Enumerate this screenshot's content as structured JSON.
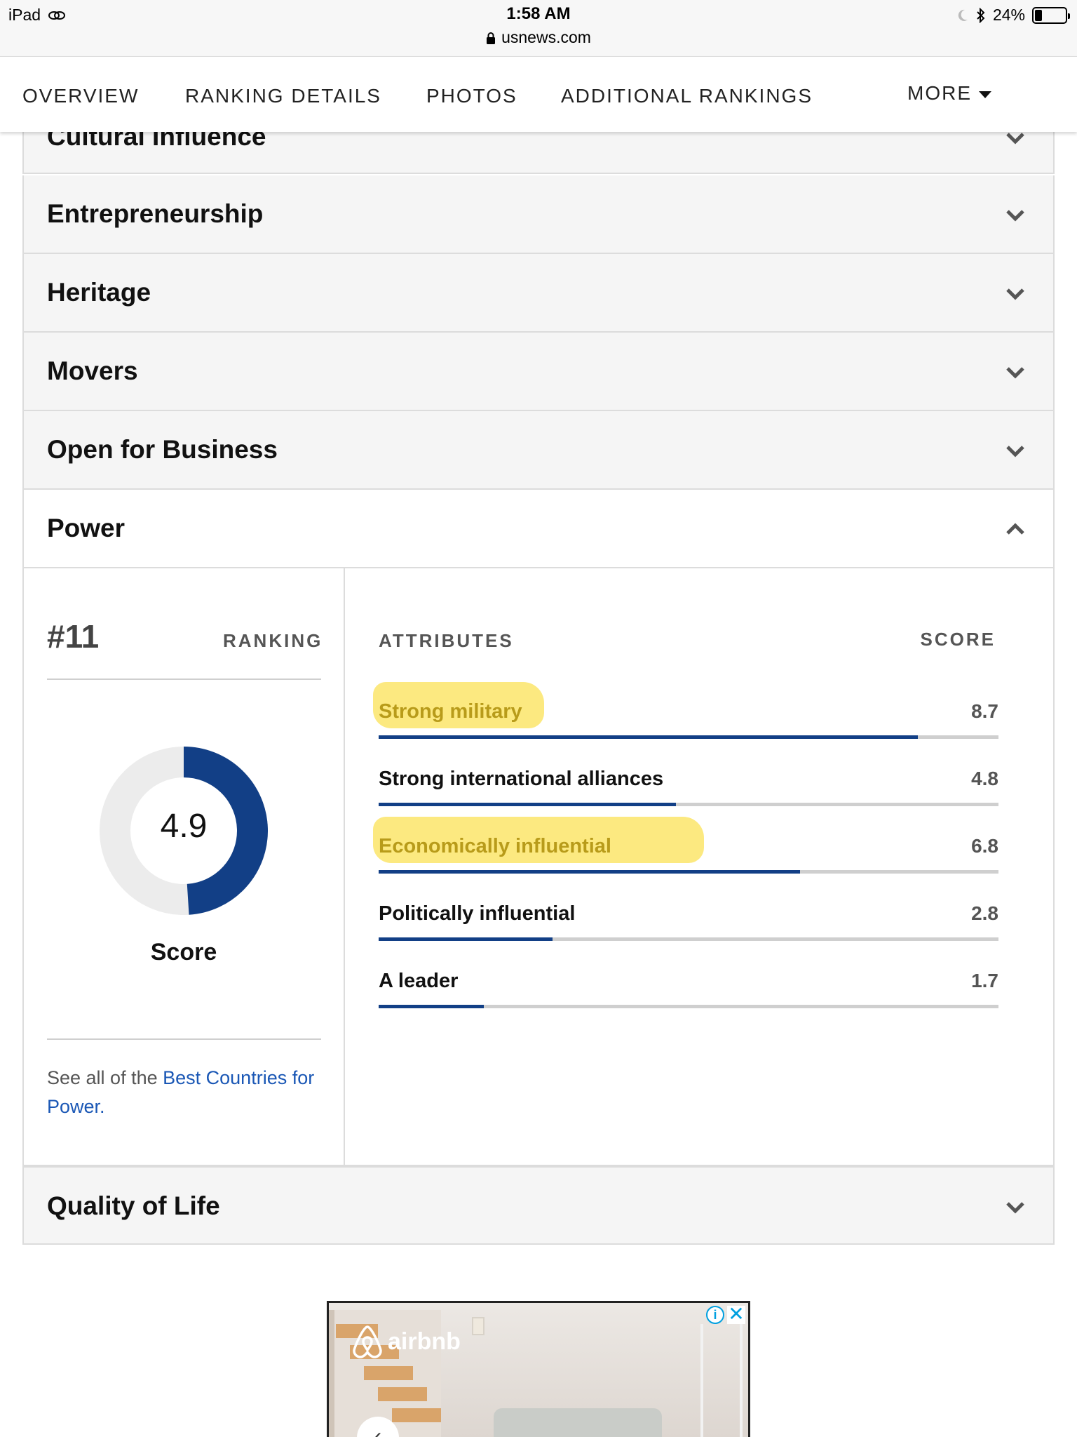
{
  "statusbar": {
    "device": "iPad",
    "time": "1:58 AM",
    "url": "usnews.com",
    "battery": "24%",
    "battery_level": 0.24
  },
  "nav": {
    "items": [
      {
        "label": "OVERVIEW"
      },
      {
        "label": "RANKING DETAILS"
      },
      {
        "label": "PHOTOS"
      },
      {
        "label": "ADDITIONAL RANKINGS"
      }
    ],
    "more_label": "MORE"
  },
  "accordion": {
    "rows": [
      {
        "label": "Cultural Influence"
      },
      {
        "label": "Entrepreneurship"
      },
      {
        "label": "Heritage"
      },
      {
        "label": "Movers"
      },
      {
        "label": "Open for Business"
      },
      {
        "label": "Power"
      },
      {
        "label": "Quality of Life"
      }
    ]
  },
  "power": {
    "rank": "#11",
    "rank_label": "RANKING",
    "score": "4.9",
    "score_value": 4.9,
    "score_max": 10,
    "score_label": "Score",
    "see_all_prefix": "See all of the ",
    "see_all_link": "Best Countries for Power.",
    "attributes_header": "ATTRIBUTES",
    "score_header": "SCORE",
    "attributes": [
      {
        "name": "Strong military",
        "score": "8.7",
        "value": 8.7,
        "highlighted": true
      },
      {
        "name": "Strong international alliances",
        "score": "4.8",
        "value": 4.8,
        "highlighted": false
      },
      {
        "name": "Economically influential",
        "score": "6.8",
        "value": 6.8,
        "highlighted": true
      },
      {
        "name": "Politically influential",
        "score": "2.8",
        "value": 2.8,
        "highlighted": false
      },
      {
        "name": "A leader",
        "score": "1.7",
        "value": 1.7,
        "highlighted": false
      }
    ]
  },
  "ad": {
    "brand": "airbnb"
  },
  "colors": {
    "accent": "#123f86",
    "link": "#1a57b5",
    "highlight": "#fbe56a",
    "track": "#cfcfcf"
  }
}
